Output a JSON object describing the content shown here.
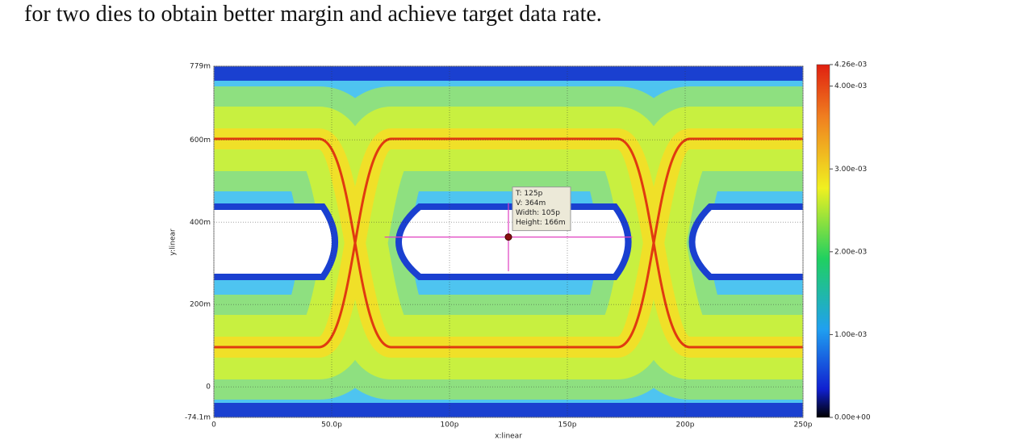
{
  "text": "for two dies to obtain better margin and achieve target data rate.",
  "chart_data": {
    "type": "eye-diagram",
    "xlabel": "x:linear",
    "ylabel": "y:linear",
    "xlim": [
      0,
      250
    ],
    "ylim": [
      -0.0741,
      0.779
    ],
    "xticks": [
      0,
      {
        "value": 50,
        "label": "50.0p"
      },
      {
        "value": 100,
        "label": "100p"
      },
      {
        "value": 150,
        "label": "150p"
      },
      {
        "value": 200,
        "label": "200p"
      },
      {
        "value": 250,
        "label": "250p"
      }
    ],
    "yticks": [
      {
        "value": -0.0741,
        "label": "-74.1m"
      },
      0,
      {
        "value": 0.2,
        "label": "200m"
      },
      {
        "value": 0.4,
        "label": "400m"
      },
      {
        "value": 0.6,
        "label": "600m"
      },
      {
        "value": 0.779,
        "label": "779m"
      }
    ],
    "grid": true,
    "colorbar": {
      "lim": [
        0,
        0.00426
      ],
      "ticks": [
        {
          "value": 0,
          "label": "0.00e+00"
        },
        {
          "value": 0.001,
          "label": "1.00e-03"
        },
        {
          "value": 0.002,
          "label": "2.00e-03"
        },
        {
          "value": 0.003,
          "label": "3.00e-03"
        },
        {
          "value": 0.004,
          "label": "4.00e-03"
        },
        {
          "value": 0.00426,
          "label": "4.26e-03"
        }
      ]
    },
    "cursor": {
      "t": 125,
      "v": 0.364,
      "width": 105,
      "height": 0.166,
      "labels": [
        "T: 125p",
        "V: 364m",
        "Width: 105p",
        "Height: 166m"
      ]
    }
  }
}
